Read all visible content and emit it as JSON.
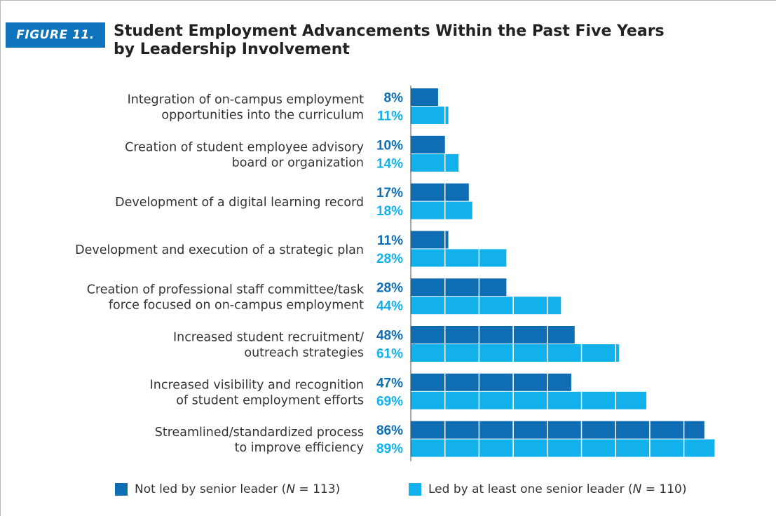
{
  "figure": {
    "label": "FIGURE 11.",
    "title_line1": "Student Employment Advancements Within the Past Five Years",
    "title_line2": "by Leadership Involvement"
  },
  "colors": {
    "not_led": "#0e6db3",
    "led": "#12b1ec",
    "badge": "#0e74bc"
  },
  "legend": [
    {
      "label_pre": "Not led by senior leader (",
      "n_var": "N",
      "label_post": " = 113)"
    },
    {
      "label_pre": "Led by at least one senior leader (",
      "n_var": "N",
      "label_post": " = 110)"
    }
  ],
  "chart_data": {
    "type": "bar",
    "orientation": "horizontal",
    "categories": [
      [
        "Integration of on-campus employment",
        "opportunities into the curriculum"
      ],
      [
        "Creation of student employee advisory",
        "board or organization"
      ],
      [
        "Development of a digital learning record"
      ],
      [
        "Development and execution of a strategic plan"
      ],
      [
        "Creation of professional staff committee/task",
        "force focused on on-campus employment"
      ],
      [
        "Increased student recruitment/",
        "outreach strategies"
      ],
      [
        "Increased visibility and recognition",
        "of student employment efforts"
      ],
      [
        "Streamlined/standardized process",
        "to improve efficiency"
      ]
    ],
    "series": [
      {
        "name": "Not led by senior leader (N = 113)",
        "values": [
          8,
          10,
          17,
          11,
          28,
          48,
          47,
          86
        ]
      },
      {
        "name": "Led by at least one senior leader (N = 110)",
        "values": [
          11,
          14,
          18,
          28,
          44,
          61,
          69,
          89
        ]
      }
    ],
    "value_labels": [
      [
        "8%",
        "10%",
        "17%",
        "11%",
        "28%",
        "48%",
        "47%",
        "86%"
      ],
      [
        "11%",
        "14%",
        "18%",
        "28%",
        "44%",
        "61%",
        "69%",
        "89%"
      ]
    ],
    "xlim": [
      0,
      100
    ],
    "grid": false,
    "legend_position": "bottom"
  }
}
